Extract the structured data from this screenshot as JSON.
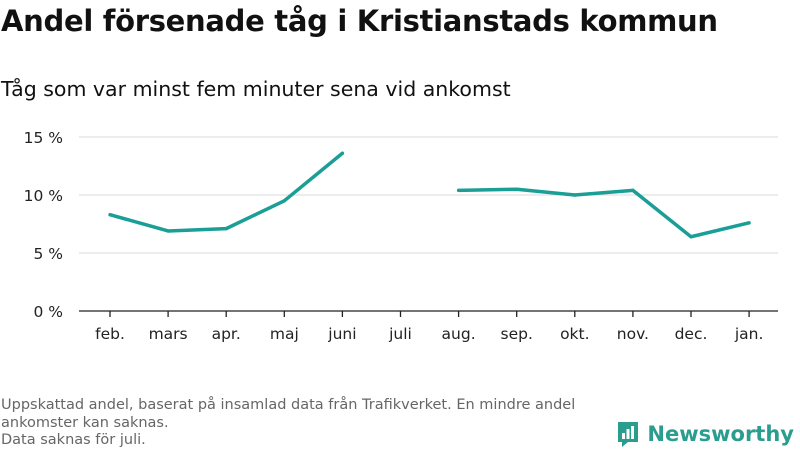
{
  "title": "Andel försenade tåg i Kristianstads kommun",
  "subtitle": "Tåg som var minst fem minuter sena vid ankomst",
  "footnote": {
    "line1": "Uppskattad andel, baserat på insamlad data från Trafikverket. En mindre andel",
    "line2": "ankomster kan saknas.",
    "line3": "Data saknas för juli."
  },
  "brand": {
    "name": "Newsworthy",
    "icon": "newsworthy-logo-icon",
    "color": "#2a9d8f"
  },
  "chart_data": {
    "type": "line",
    "categories": [
      "feb.",
      "mars",
      "apr.",
      "maj",
      "juni",
      "juli",
      "aug.",
      "sep.",
      "okt.",
      "nov.",
      "dec.",
      "jan."
    ],
    "series": [
      {
        "values": [
          8.3,
          6.9,
          7.1,
          9.5,
          13.6,
          null,
          10.4,
          10.5,
          10.0,
          10.4,
          6.4,
          7.6
        ],
        "color": "#1a9e96"
      }
    ],
    "ylim": [
      0,
      15
    ],
    "yticks": [
      0,
      5,
      10,
      15
    ],
    "ytick_labels": [
      "0 %",
      "5 %",
      "10 %",
      "15 %"
    ],
    "xlabel": "",
    "ylabel": "",
    "grid": true,
    "legend": "none"
  }
}
